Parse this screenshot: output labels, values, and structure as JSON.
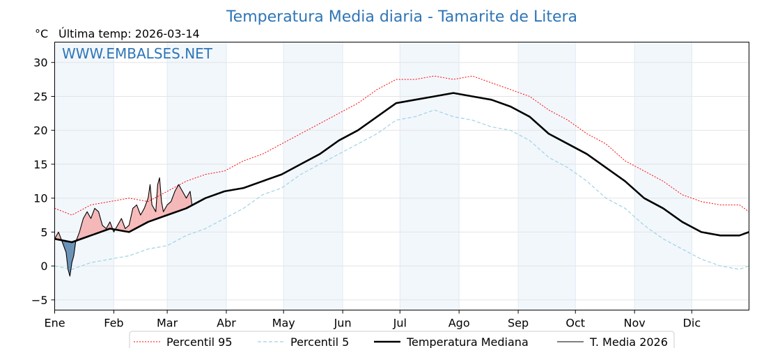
{
  "chart_data": {
    "type": "line",
    "title": "Temperatura Media diaria - Tamarite de Litera",
    "ylabel": "°C",
    "last_update_label": "Última temp: 2026-03-14",
    "watermark": "WWW.EMBALSES.NET",
    "xlim": [
      1,
      365
    ],
    "ylim": [
      -6.5,
      33
    ],
    "yticks": [
      -5,
      0,
      5,
      10,
      15,
      20,
      25,
      30
    ],
    "month_labels": [
      "Ene",
      "Feb",
      "Mar",
      "Abr",
      "May",
      "Jun",
      "Jul",
      "Ago",
      "Sep",
      "Oct",
      "Nov",
      "Dic"
    ],
    "month_starts": [
      1,
      32,
      60,
      91,
      121,
      152,
      182,
      213,
      244,
      274,
      305,
      335
    ],
    "shaded_months": [
      "Ene",
      "Mar",
      "May",
      "Jul",
      "Sep",
      "Nov"
    ],
    "grid": true,
    "legend_position": "bottom-center",
    "series": [
      {
        "name": "Percentil 95",
        "color": "#ff0000",
        "style": "dotted",
        "points": [
          [
            1,
            8.5
          ],
          [
            10,
            7.5
          ],
          [
            20,
            9
          ],
          [
            30,
            9.5
          ],
          [
            40,
            10
          ],
          [
            50,
            9.5
          ],
          [
            60,
            11
          ],
          [
            70,
            12.5
          ],
          [
            80,
            13.5
          ],
          [
            90,
            14
          ],
          [
            100,
            15.5
          ],
          [
            110,
            16.5
          ],
          [
            120,
            18
          ],
          [
            130,
            19.5
          ],
          [
            140,
            21
          ],
          [
            150,
            22.5
          ],
          [
            160,
            24
          ],
          [
            170,
            26
          ],
          [
            180,
            27.5
          ],
          [
            190,
            27.5
          ],
          [
            200,
            28
          ],
          [
            210,
            27.5
          ],
          [
            220,
            28
          ],
          [
            230,
            27
          ],
          [
            240,
            26
          ],
          [
            250,
            25
          ],
          [
            260,
            23
          ],
          [
            270,
            21.5
          ],
          [
            280,
            19.5
          ],
          [
            290,
            18
          ],
          [
            300,
            15.5
          ],
          [
            310,
            14
          ],
          [
            320,
            12.5
          ],
          [
            330,
            10.5
          ],
          [
            340,
            9.5
          ],
          [
            350,
            9
          ],
          [
            360,
            9
          ],
          [
            365,
            8
          ]
        ]
      },
      {
        "name": "Percentil 5",
        "color": "#9fd2e3",
        "style": "dashed",
        "points": [
          [
            1,
            0
          ],
          [
            10,
            -0.5
          ],
          [
            20,
            0.5
          ],
          [
            30,
            1
          ],
          [
            40,
            1.5
          ],
          [
            50,
            2.5
          ],
          [
            60,
            3
          ],
          [
            70,
            4.5
          ],
          [
            80,
            5.5
          ],
          [
            90,
            7
          ],
          [
            100,
            8.5
          ],
          [
            110,
            10.5
          ],
          [
            120,
            11.5
          ],
          [
            130,
            13.5
          ],
          [
            140,
            15
          ],
          [
            150,
            16.5
          ],
          [
            160,
            18
          ],
          [
            170,
            19.5
          ],
          [
            180,
            21.5
          ],
          [
            190,
            22
          ],
          [
            200,
            23
          ],
          [
            210,
            22
          ],
          [
            220,
            21.5
          ],
          [
            230,
            20.5
          ],
          [
            240,
            20
          ],
          [
            250,
            18.5
          ],
          [
            260,
            16
          ],
          [
            270,
            14.5
          ],
          [
            280,
            12.5
          ],
          [
            290,
            10
          ],
          [
            300,
            8.5
          ],
          [
            310,
            6
          ],
          [
            320,
            4
          ],
          [
            330,
            2.5
          ],
          [
            340,
            1
          ],
          [
            350,
            0
          ],
          [
            360,
            -0.5
          ],
          [
            365,
            0
          ]
        ]
      },
      {
        "name": "Temperatura Mediana",
        "color": "#000000",
        "style": "solid-thick",
        "points": [
          [
            1,
            4
          ],
          [
            10,
            3.5
          ],
          [
            20,
            4.5
          ],
          [
            30,
            5.5
          ],
          [
            40,
            5
          ],
          [
            50,
            6.5
          ],
          [
            60,
            7.5
          ],
          [
            70,
            8.5
          ],
          [
            80,
            10
          ],
          [
            90,
            11
          ],
          [
            100,
            11.5
          ],
          [
            110,
            12.5
          ],
          [
            120,
            13.5
          ],
          [
            130,
            15
          ],
          [
            140,
            16.5
          ],
          [
            150,
            18.5
          ],
          [
            160,
            20
          ],
          [
            170,
            22
          ],
          [
            180,
            24
          ],
          [
            190,
            24.5
          ],
          [
            200,
            25
          ],
          [
            210,
            25.5
          ],
          [
            220,
            25
          ],
          [
            230,
            24.5
          ],
          [
            240,
            23.5
          ],
          [
            250,
            22
          ],
          [
            260,
            19.5
          ],
          [
            270,
            18
          ],
          [
            280,
            16.5
          ],
          [
            290,
            14.5
          ],
          [
            300,
            12.5
          ],
          [
            310,
            10
          ],
          [
            320,
            8.5
          ],
          [
            330,
            6.5
          ],
          [
            340,
            5
          ],
          [
            350,
            4.5
          ],
          [
            360,
            4.5
          ],
          [
            365,
            5
          ]
        ]
      },
      {
        "name": "T. Media 2026",
        "color": "#000000",
        "style": "solid-thin",
        "points": [
          [
            1,
            4
          ],
          [
            3,
            5
          ],
          [
            5,
            3.5
          ],
          [
            7,
            2
          ],
          [
            8,
            -0.5
          ],
          [
            9,
            -1.5
          ],
          [
            10,
            0.5
          ],
          [
            11,
            1.5
          ],
          [
            12,
            3.5
          ],
          [
            14,
            5
          ],
          [
            16,
            7
          ],
          [
            18,
            8
          ],
          [
            20,
            7
          ],
          [
            22,
            8.5
          ],
          [
            24,
            8
          ],
          [
            26,
            6
          ],
          [
            28,
            5.5
          ],
          [
            30,
            6.5
          ],
          [
            32,
            5
          ],
          [
            34,
            6
          ],
          [
            36,
            7
          ],
          [
            38,
            5.5
          ],
          [
            40,
            6
          ],
          [
            42,
            8.5
          ],
          [
            44,
            9
          ],
          [
            46,
            7.5
          ],
          [
            48,
            8.5
          ],
          [
            50,
            10
          ],
          [
            51,
            12
          ],
          [
            52,
            9
          ],
          [
            54,
            8
          ],
          [
            55,
            12
          ],
          [
            56,
            13
          ],
          [
            57,
            9.5
          ],
          [
            58,
            8
          ],
          [
            60,
            9
          ],
          [
            62,
            9.5
          ],
          [
            64,
            11
          ],
          [
            66,
            12
          ],
          [
            68,
            11
          ],
          [
            70,
            10
          ],
          [
            72,
            11
          ],
          [
            73,
            9
          ]
        ]
      }
    ]
  }
}
